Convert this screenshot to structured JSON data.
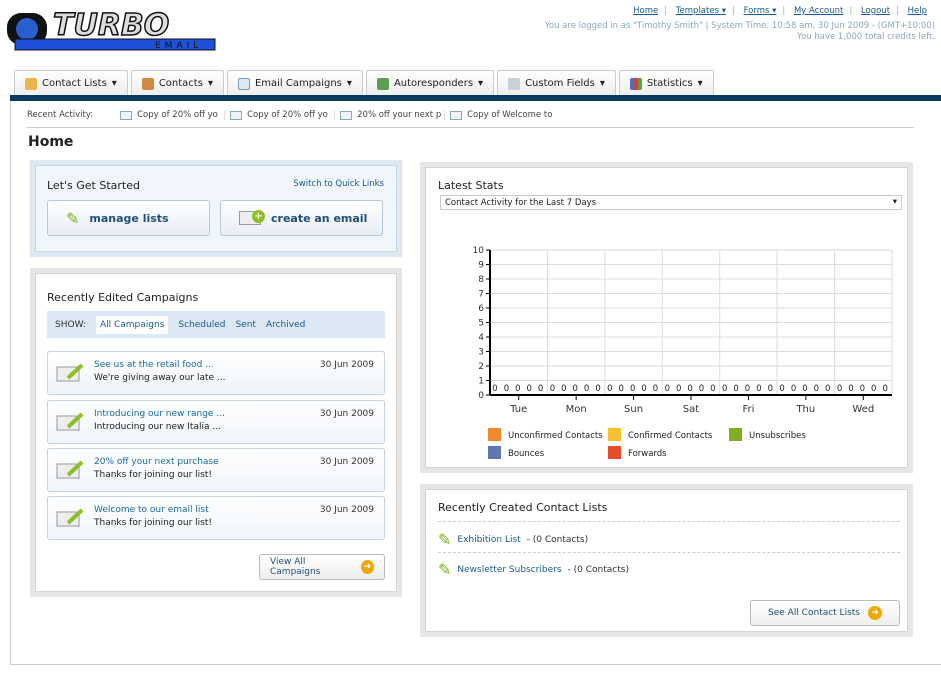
{
  "logo": {
    "text": "TURBO",
    "sub": "EMAIL"
  },
  "top_links": [
    {
      "label": "Home"
    },
    {
      "label": "Templates ▾"
    },
    {
      "label": "Forms ▾"
    },
    {
      "label": "My Account"
    },
    {
      "label": "Logout"
    },
    {
      "label": "Help"
    }
  ],
  "login_info": "You are logged in as \"Timothy Smith\" | System Time: 10:58 am, 30 Jun 2009 - (GMT+10:00)",
  "credits_info": "You have 1,000 total credits left.",
  "tabs": [
    {
      "label": "Contact Lists",
      "icon": "contact-lists-icon",
      "color": "#e8b84a"
    },
    {
      "label": "Contacts",
      "icon": "contacts-icon",
      "color": "#d08a40"
    },
    {
      "label": "Email Campaigns",
      "icon": "envelope-icon",
      "color": "#9ab8d8"
    },
    {
      "label": "Autoresponders",
      "icon": "autoresponder-icon",
      "color": "#5aa050"
    },
    {
      "label": "Custom Fields",
      "icon": "custom-fields-icon",
      "color": "#b0b8c0"
    },
    {
      "label": "Statistics",
      "icon": "statistics-icon",
      "color": "#5070c0"
    }
  ],
  "recent_activity": {
    "label": "Recent Activity:",
    "items": [
      "Copy of 20% off yo",
      "Copy of 20% off yo",
      "20% off your next p",
      "Copy of Welcome to"
    ]
  },
  "page_title": "Home",
  "get_started": {
    "title": "Let's Get Started",
    "switch_link": "Switch to Quick Links",
    "manage_lists": "manage lists",
    "create_email": "create an email"
  },
  "campaigns": {
    "title": "Recently Edited Campaigns",
    "show_label": "SHOW:",
    "filters": [
      "All Campaigns",
      "Scheduled",
      "Sent",
      "Archived"
    ],
    "items": [
      {
        "title": "See us at the retail food ...",
        "subtitle": "We're giving away our late ...",
        "date": "30 Jun 2009"
      },
      {
        "title": "Introducing our new range ...",
        "subtitle": "Introducing our new Italia ...",
        "date": "30 Jun 2009"
      },
      {
        "title": "20% off your next purchase",
        "subtitle": "Thanks for joining our list!",
        "date": "30 Jun 2009"
      },
      {
        "title": "Welcome to our email list",
        "subtitle": "Thanks for joining our list!",
        "date": "30 Jun 2009"
      }
    ],
    "view_all": "View All Campaigns"
  },
  "stats": {
    "title": "Latest Stats",
    "select_value": "Contact Activity for the Last 7 Days"
  },
  "chart_data": {
    "type": "bar",
    "categories": [
      "Tue",
      "Mon",
      "Sun",
      "Sat",
      "Fri",
      "Thu",
      "Wed"
    ],
    "ylim": [
      0,
      10
    ],
    "yticks": [
      0,
      1,
      2,
      3,
      4,
      5,
      6,
      7,
      8,
      9,
      10
    ],
    "grid": true,
    "legend": "bottom",
    "series": [
      {
        "name": "Unconfirmed Contacts",
        "color": "#f08a30",
        "values": [
          0,
          0,
          0,
          0,
          0,
          0,
          0
        ]
      },
      {
        "name": "Confirmed Contacts",
        "color": "#f8c030",
        "values": [
          0,
          0,
          0,
          0,
          0,
          0,
          0
        ]
      },
      {
        "name": "Unsubscribes",
        "color": "#80b020",
        "values": [
          0,
          0,
          0,
          0,
          0,
          0,
          0
        ]
      },
      {
        "name": "Bounces",
        "color": "#6078b0",
        "values": [
          0,
          0,
          0,
          0,
          0,
          0,
          0
        ]
      },
      {
        "name": "Forwards",
        "color": "#e84c28",
        "values": [
          0,
          0,
          0,
          0,
          0,
          0,
          0
        ]
      }
    ]
  },
  "contact_lists": {
    "title": "Recently Created Contact Lists",
    "items": [
      {
        "name": "Exhibition List",
        "count": " - (0 Contacts)"
      },
      {
        "name": "Newsletter Subscribers",
        "count": " - (0 Contacts)"
      }
    ],
    "see_all": "See All Contact Lists"
  }
}
